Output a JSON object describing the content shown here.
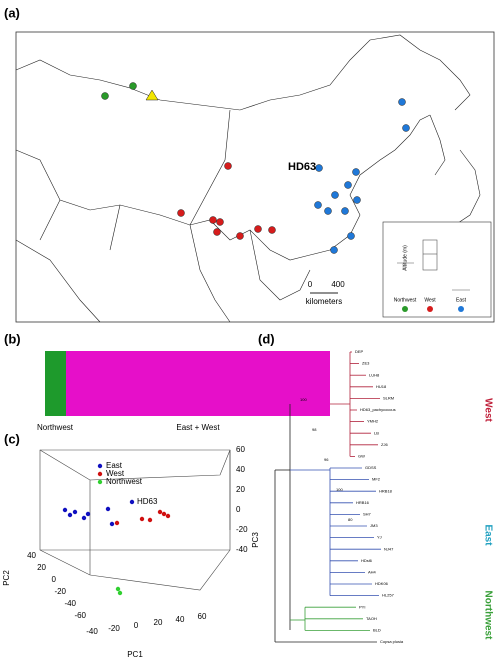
{
  "panels": {
    "a": {
      "label": "(a)",
      "site_label": "HD63",
      "scale": [
        "0",
        "400"
      ],
      "scale_unit": "kilometers",
      "inset": {
        "axis_label": "Altitude (m)",
        "groups": [
          "Northwest",
          "West",
          "East"
        ]
      }
    },
    "b": {
      "label": "(b)",
      "groups": [
        "Northwest",
        "East + West"
      ]
    },
    "c": {
      "label": "(c)",
      "legend": [
        "East",
        "West",
        "Northwest"
      ],
      "point_label": "HD63",
      "x_label": "PC1",
      "y_label": "PC2",
      "z_label": "PC3",
      "x_ticks": [
        -40,
        -20,
        0,
        20,
        40,
        60
      ],
      "y_ticks": [
        40,
        20,
        0,
        -20,
        -40,
        -60
      ],
      "z_ticks": [
        60,
        40,
        20,
        0,
        -20,
        -40
      ]
    },
    "d": {
      "label": "(d)",
      "clades": [
        "West",
        "East",
        "Northwest"
      ],
      "leaves": [
        "DEP",
        "ZE3",
        "LUH8",
        "HU18",
        "SLRM",
        "HD63_pachycoccus",
        "YMH2",
        "LB",
        "ZJ6",
        "GW",
        "GDSS",
        "MF2",
        "HRB18",
        "HRB16",
        "SH7",
        "JM3",
        "YJ",
        "NJ47",
        "HDsl6",
        "AH4",
        "HDK06",
        "HL257",
        "PYI",
        "TAOH",
        "BLD",
        "Copsa plusia"
      ],
      "support": [
        "100",
        "98",
        "96",
        "100",
        "80"
      ]
    }
  }
}
